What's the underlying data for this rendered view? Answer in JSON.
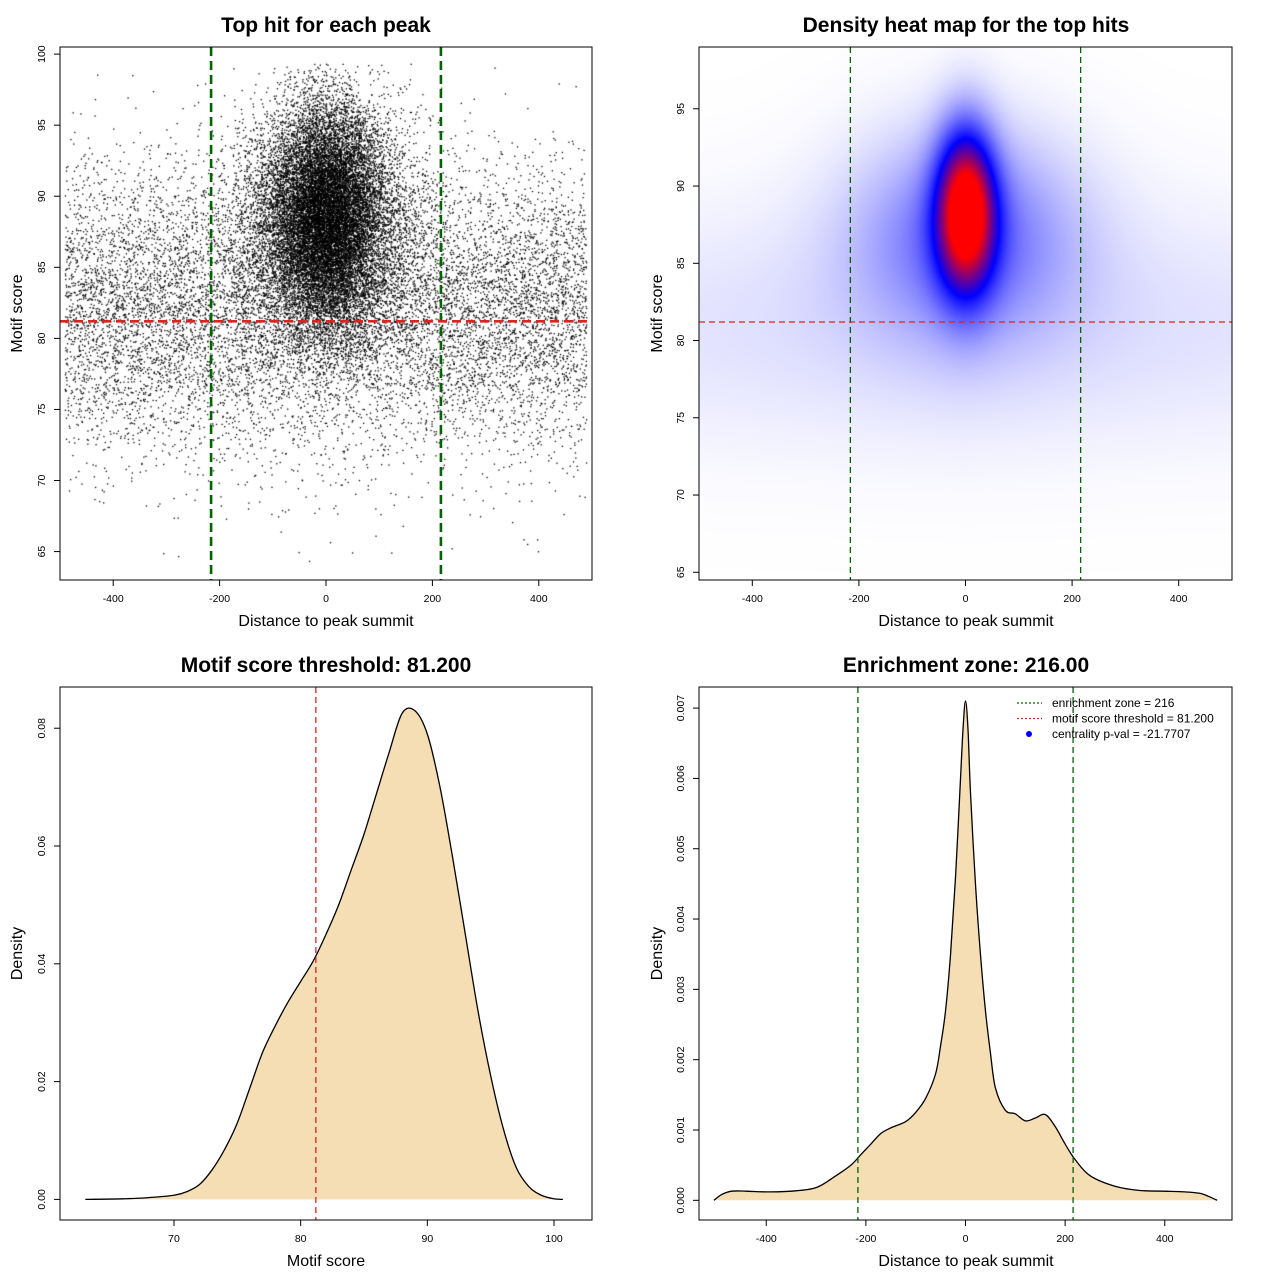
{
  "chart_data": [
    {
      "type": "scatter",
      "title": "Top hit for each peak",
      "xlabel": "Distance to peak summit",
      "ylabel": "Motif score",
      "xlim": [
        -500,
        500
      ],
      "ylim": [
        63,
        100.5
      ],
      "xticks": [
        -400,
        -200,
        0,
        200,
        400
      ],
      "yticks": [
        65,
        70,
        75,
        80,
        85,
        90,
        95,
        100
      ],
      "point_color": "#000000",
      "point_distribution": {
        "n_points_approx": 30000,
        "central_component": {
          "x_center": 0,
          "x_sd": 55,
          "y_center": 88.5,
          "y_sd": 4
        },
        "spread_component": {
          "x_range": [
            -490,
            490
          ],
          "y_center": 82,
          "y_sd": 5
        }
      },
      "vlines": [
        {
          "x": -216,
          "color": "#006400",
          "style": "dashed"
        },
        {
          "x": 216,
          "color": "#006400",
          "style": "dashed"
        }
      ],
      "hlines": [
        {
          "y": 81.2,
          "color": "#dd2222",
          "style": "dashed"
        }
      ],
      "grid": false
    },
    {
      "type": "heatmap",
      "title": "Density heat map for the top hits",
      "xlabel": "Distance to peak summit",
      "ylabel": "Motif score",
      "xlim": [
        -500,
        500
      ],
      "ylim": [
        64.5,
        99
      ],
      "xticks": [
        -400,
        -200,
        0,
        200,
        400
      ],
      "yticks": [
        65,
        70,
        75,
        80,
        85,
        90,
        95
      ],
      "color_scale": [
        "#ffffff",
        "#0000ff",
        "#ff0000"
      ],
      "density_peak": {
        "x": 0,
        "y": 88.5
      },
      "vlines": [
        {
          "x": -216,
          "color": "#006400",
          "style": "dashed"
        },
        {
          "x": 216,
          "color": "#006400",
          "style": "dashed"
        }
      ],
      "hlines": [
        {
          "y": 81.2,
          "color": "#dd2222",
          "style": "dashed"
        }
      ],
      "grid": false
    },
    {
      "type": "area",
      "title": "Motif score threshold: 81.200",
      "xlabel": "Motif score",
      "ylabel": "Density",
      "xlim": [
        61,
        103
      ],
      "ylim": [
        -0.0035,
        0.087
      ],
      "xticks": [
        70,
        80,
        90,
        100
      ],
      "yticks": [
        "0.00",
        "0.02",
        "0.04",
        "0.06",
        "0.08"
      ],
      "ytick_values": [
        0,
        0.02,
        0.04,
        0.06,
        0.08
      ],
      "fill_color": "#f5deb3",
      "x": [
        63,
        66,
        68,
        70,
        71,
        72,
        73,
        74,
        75,
        76,
        77,
        78,
        79,
        80,
        81,
        82,
        83,
        84,
        85,
        86,
        87,
        88,
        89,
        90,
        91,
        92,
        93,
        94,
        95,
        96,
        97,
        98,
        99,
        100,
        100.7
      ],
      "y": [
        0,
        0.0001,
        0.0003,
        0.0007,
        0.0013,
        0.0025,
        0.005,
        0.0085,
        0.013,
        0.019,
        0.025,
        0.0295,
        0.0335,
        0.037,
        0.0405,
        0.045,
        0.05,
        0.056,
        0.062,
        0.069,
        0.076,
        0.0825,
        0.083,
        0.079,
        0.07,
        0.058,
        0.045,
        0.032,
        0.021,
        0.012,
        0.0055,
        0.0022,
        0.0007,
        0.0001,
        0
      ],
      "vlines": [
        {
          "x": 81.2,
          "color": "#dd2222",
          "style": "dashed"
        }
      ],
      "grid": false
    },
    {
      "type": "area",
      "title": "Enrichment zone: 216.00",
      "xlabel": "Distance to peak summit",
      "ylabel": "Density",
      "xlim": [
        -535,
        535
      ],
      "ylim": [
        -0.00028,
        0.0073
      ],
      "xticks": [
        -400,
        -200,
        0,
        200,
        400
      ],
      "yticks": [
        "0.000",
        "0.001",
        "0.002",
        "0.003",
        "0.004",
        "0.005",
        "0.006",
        "0.007"
      ],
      "ytick_values": [
        0,
        0.001,
        0.002,
        0.003,
        0.004,
        0.005,
        0.006,
        0.007
      ],
      "fill_color": "#f5deb3",
      "x": [
        -505,
        -490,
        -470,
        -440,
        -400,
        -350,
        -300,
        -260,
        -230,
        -210,
        -190,
        -170,
        -150,
        -120,
        -100,
        -80,
        -60,
        -50,
        -40,
        -30,
        -20,
        -10,
        -5,
        0,
        5,
        10,
        20,
        30,
        40,
        50,
        60,
        80,
        100,
        120,
        140,
        160,
        180,
        200,
        220,
        250,
        300,
        350,
        400,
        440,
        470,
        490,
        505
      ],
      "y": [
        0,
        8e-05,
        0.00013,
        0.00013,
        0.00012,
        0.00013,
        0.00018,
        0.00035,
        0.0005,
        0.00065,
        0.0008,
        0.00095,
        0.00103,
        0.00112,
        0.00125,
        0.00145,
        0.0018,
        0.0022,
        0.0027,
        0.0035,
        0.0046,
        0.006,
        0.0067,
        0.0071,
        0.0067,
        0.0058,
        0.0045,
        0.0035,
        0.0027,
        0.0021,
        0.0016,
        0.00128,
        0.00123,
        0.00113,
        0.00117,
        0.00122,
        0.00105,
        0.0008,
        0.00058,
        0.00035,
        0.0002,
        0.00014,
        0.00013,
        0.00012,
        0.0001,
        5e-05,
        0
      ],
      "vlines": [
        {
          "x": -216,
          "color": "#006400",
          "style": "dashed"
        },
        {
          "x": 216,
          "color": "#006400",
          "style": "dashed"
        }
      ],
      "legend": {
        "position": "top-right",
        "entries": [
          {
            "label": "enrichment zone = 216",
            "color": "#006400",
            "symbol": "dotted-line"
          },
          {
            "label": "motif score threshold = 81.200",
            "color": "#dd2222",
            "symbol": "dotted-line"
          },
          {
            "label": "centrality p-val = -21.7707",
            "color": "#0000ff",
            "symbol": "point"
          }
        ]
      },
      "grid": false
    }
  ]
}
